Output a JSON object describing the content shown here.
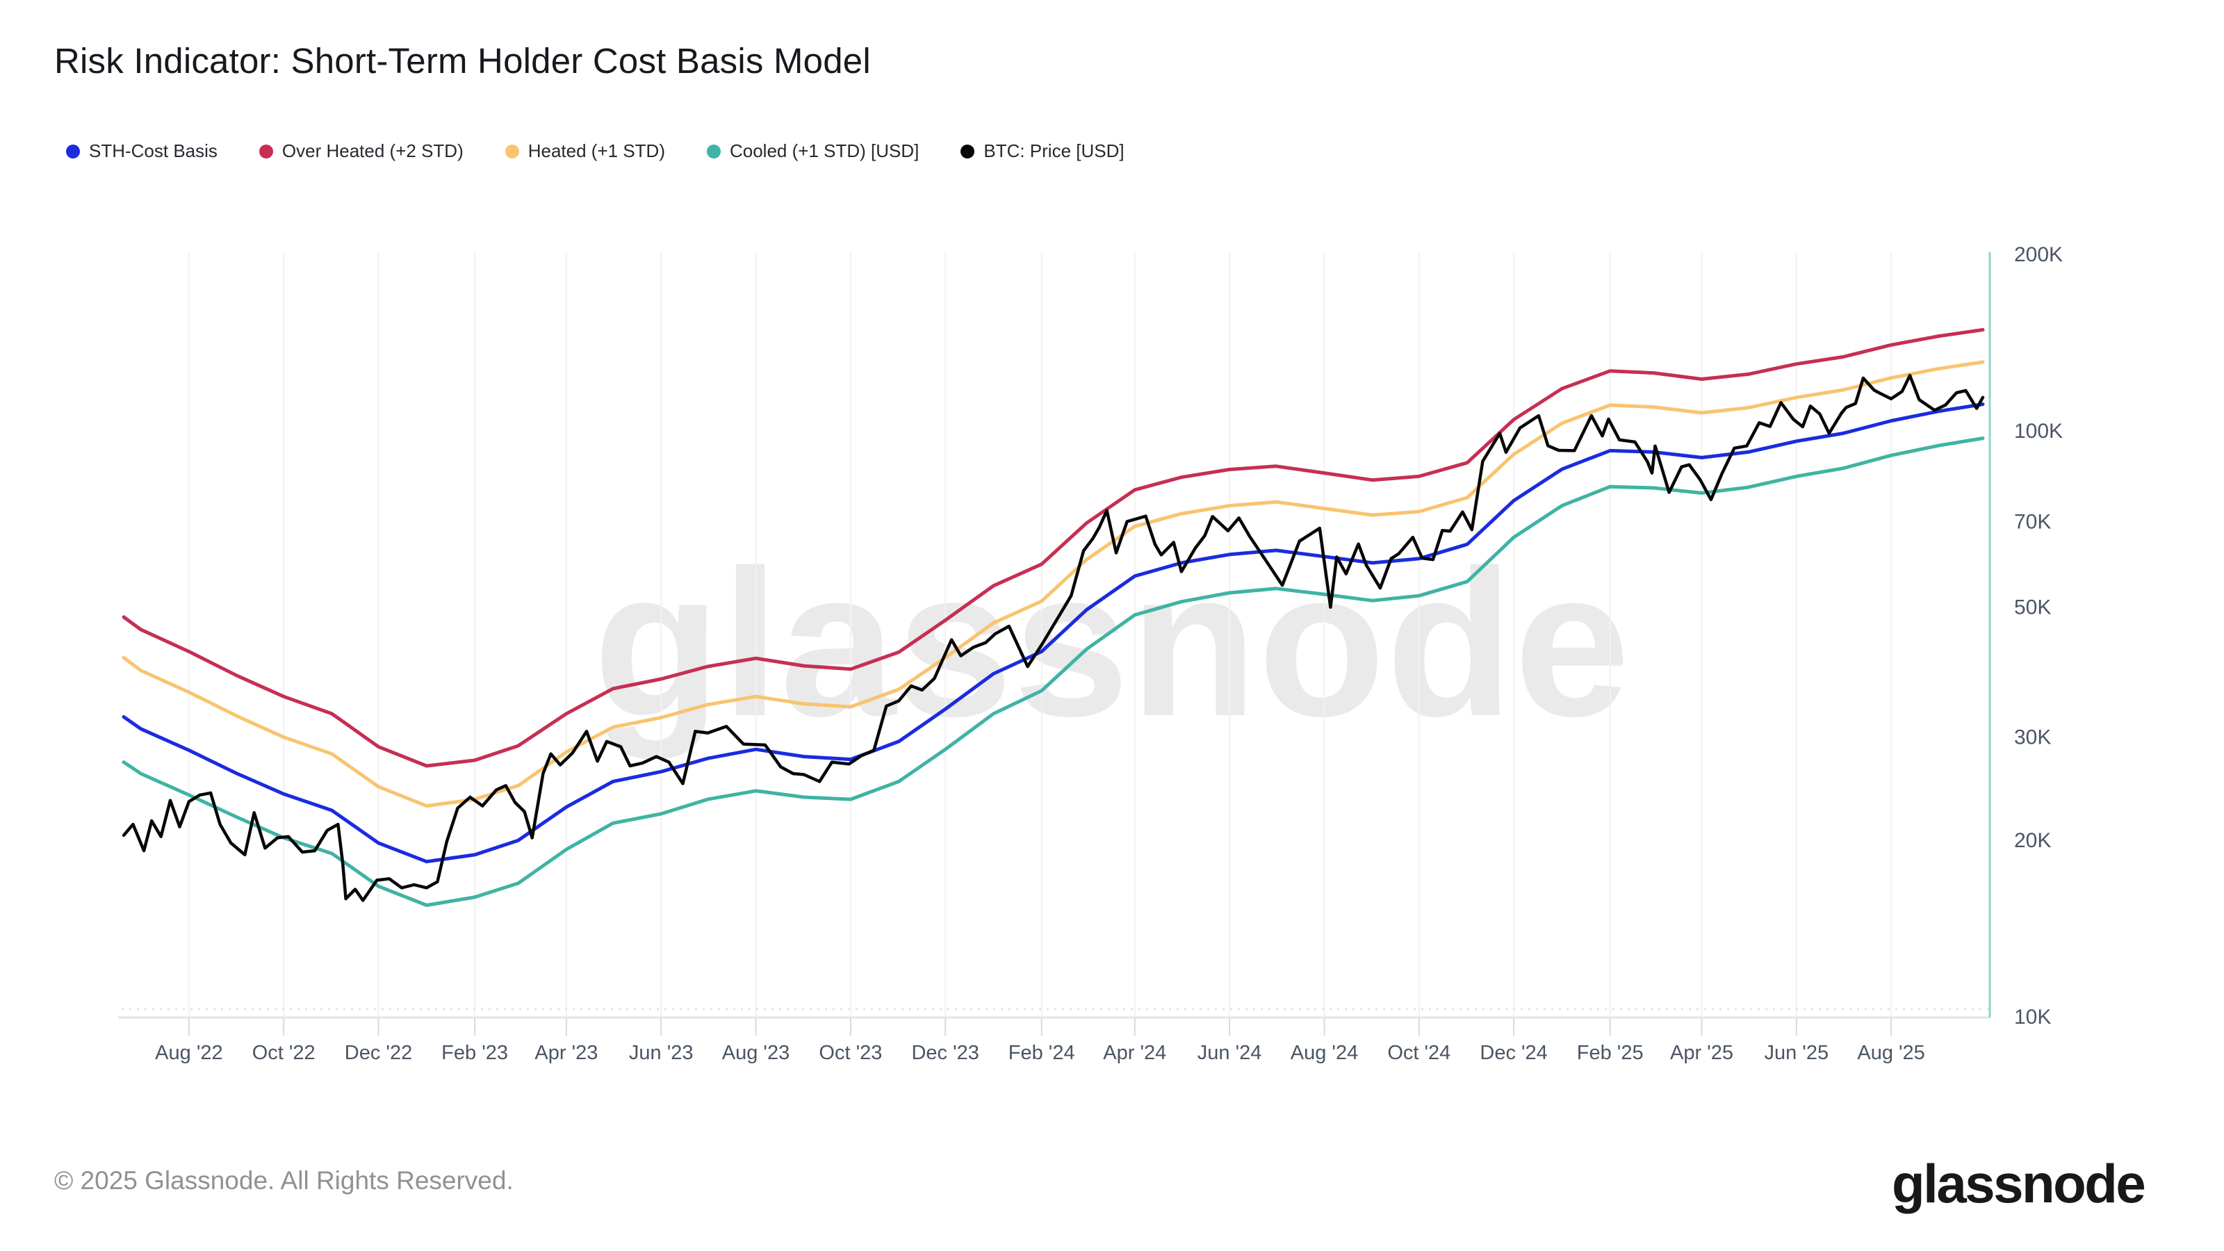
{
  "title": "Risk Indicator: Short-Term Holder Cost Basis Model",
  "watermark": "glassnode",
  "footer": {
    "copyright": "© 2025 Glassnode. All Rights Reserved.",
    "logo": "glassnode"
  },
  "legend": [
    {
      "label": "STH-Cost Basis",
      "color": "#1a2be0"
    },
    {
      "label": "Over Heated (+2 STD)",
      "color": "#c62f52"
    },
    {
      "label": "Heated (+1 STD)",
      "color": "#f8c46f"
    },
    {
      "label": "Cooled (+1 STD) [USD]",
      "color": "#3fb3a4"
    },
    {
      "label": "BTC: Price [USD]",
      "color": "#070707"
    }
  ],
  "chart_data": {
    "type": "line",
    "title": "Risk Indicator: Short-Term Holder Cost Basis Model",
    "y_scale": "log",
    "y_unit": "USD (thousands)",
    "ylim_k": [
      10,
      200
    ],
    "x_domain": [
      "2022-06-20",
      "2025-09-29"
    ],
    "grid": {
      "vertical": true,
      "horizontal_dotted_at_k": 10
    },
    "legend_position": "top-left",
    "y_axis_side": "right",
    "y_ticks": [
      {
        "value_k": 200,
        "label": "200K"
      },
      {
        "value_k": 100,
        "label": "100K"
      },
      {
        "value_k": 70,
        "label": "70K"
      },
      {
        "value_k": 50,
        "label": "50K"
      },
      {
        "value_k": 30,
        "label": "30K"
      },
      {
        "value_k": 20,
        "label": "20K"
      },
      {
        "value_k": 10,
        "label": "10K"
      }
    ],
    "x_ticks": [
      {
        "date": "2022-08-01",
        "label": "Aug '22"
      },
      {
        "date": "2022-10-01",
        "label": "Oct '22"
      },
      {
        "date": "2022-12-01",
        "label": "Dec '22"
      },
      {
        "date": "2023-02-01",
        "label": "Feb '23"
      },
      {
        "date": "2023-04-01",
        "label": "Apr '23"
      },
      {
        "date": "2023-06-01",
        "label": "Jun '23"
      },
      {
        "date": "2023-08-01",
        "label": "Aug '23"
      },
      {
        "date": "2023-10-01",
        "label": "Oct '23"
      },
      {
        "date": "2023-12-01",
        "label": "Dec '23"
      },
      {
        "date": "2024-02-01",
        "label": "Feb '24"
      },
      {
        "date": "2024-04-01",
        "label": "Apr '24"
      },
      {
        "date": "2024-06-01",
        "label": "Jun '24"
      },
      {
        "date": "2024-08-01",
        "label": "Aug '24"
      },
      {
        "date": "2024-10-01",
        "label": "Oct '24"
      },
      {
        "date": "2024-12-01",
        "label": "Dec '24"
      },
      {
        "date": "2025-02-01",
        "label": "Feb '25"
      },
      {
        "date": "2025-04-01",
        "label": "Apr '25"
      },
      {
        "date": "2025-06-01",
        "label": "Jun '25"
      },
      {
        "date": "2025-08-01",
        "label": "Aug '25"
      }
    ],
    "band_dates": [
      "2022-06-20",
      "2022-07-01",
      "2022-08-01",
      "2022-09-01",
      "2022-10-01",
      "2022-11-01",
      "2022-12-01",
      "2023-01-01",
      "2023-02-01",
      "2023-03-01",
      "2023-04-01",
      "2023-05-01",
      "2023-06-01",
      "2023-07-01",
      "2023-08-01",
      "2023-09-01",
      "2023-10-01",
      "2023-11-01",
      "2023-12-01",
      "2024-01-01",
      "2024-02-01",
      "2024-03-01",
      "2024-04-01",
      "2024-05-01",
      "2024-06-01",
      "2024-07-01",
      "2024-08-01",
      "2024-09-01",
      "2024-10-01",
      "2024-11-01",
      "2024-12-01",
      "2025-01-01",
      "2025-02-01",
      "2025-03-01",
      "2025-04-01",
      "2025-05-01",
      "2025-06-01",
      "2025-07-01",
      "2025-08-01",
      "2025-09-01",
      "2025-09-29"
    ],
    "series": [
      {
        "name": "Over Heated (+2 STD)",
        "color": "#c62f52",
        "uses": "band_dates",
        "width": 5,
        "values_k": [
          48.1,
          45.8,
          42.0,
          38.2,
          35.2,
          32.9,
          28.9,
          26.8,
          27.4,
          29.0,
          32.9,
          36.3,
          37.7,
          39.6,
          40.9,
          39.7,
          39.2,
          41.9,
          47.5,
          54.4,
          59.2,
          69.6,
          79.3,
          83.3,
          85.9,
          87.0,
          84.7,
          82.4,
          83.6,
          88.2,
          104.5,
          118.0,
          126.5,
          125.5,
          122.5,
          124.9,
          130.0,
          133.7,
          140.1,
          145.1,
          148.7
        ]
      },
      {
        "name": "Heated (+1 STD)",
        "color": "#f8c46f",
        "uses": "band_dates",
        "width": 5,
        "values_k": [
          41.0,
          39.0,
          35.8,
          32.6,
          30.0,
          28.1,
          24.7,
          22.9,
          23.5,
          24.8,
          28.3,
          31.2,
          32.4,
          34.1,
          35.2,
          34.2,
          33.8,
          36.2,
          41.0,
          47.0,
          51.2,
          60.3,
          68.7,
          72.2,
          74.5,
          75.6,
          73.7,
          71.8,
          72.8,
          76.9,
          91.2,
          103.0,
          110.6,
          109.8,
          107.3,
          109.5,
          114.0,
          117.4,
          123.1,
          127.7,
          131.0
        ]
      },
      {
        "name": "Cooled (+1 STD) [USD]",
        "color": "#3fb3a4",
        "uses": "band_dates",
        "width": 5,
        "values_k": [
          27.2,
          26.0,
          23.9,
          21.9,
          20.2,
          19.0,
          16.7,
          15.5,
          16.0,
          16.9,
          19.3,
          21.4,
          22.2,
          23.5,
          24.3,
          23.7,
          23.5,
          25.2,
          28.6,
          32.9,
          36.0,
          42.4,
          48.5,
          51.1,
          52.9,
          53.8,
          52.6,
          51.3,
          52.3,
          55.3,
          65.8,
          74.5,
          80.3,
          79.9,
          78.3,
          80.1,
          83.6,
          86.3,
          90.8,
          94.4,
          97.1
        ]
      },
      {
        "name": "STH-Cost Basis",
        "color": "#1a2be0",
        "uses": "band_dates",
        "width": 5,
        "values_k": [
          32.5,
          31.0,
          28.5,
          26.0,
          24.0,
          22.5,
          19.8,
          18.4,
          18.9,
          20.0,
          22.8,
          25.2,
          26.2,
          27.6,
          28.6,
          27.8,
          27.5,
          29.5,
          33.5,
          38.5,
          42.0,
          49.5,
          56.5,
          59.5,
          61.5,
          62.5,
          61.0,
          59.5,
          60.5,
          64.0,
          76.0,
          86.0,
          92.5,
          92.0,
          90.0,
          92.0,
          96.0,
          99.0,
          104.0,
          108.0,
          111.0
        ]
      },
      {
        "name": "BTC: Price [USD]",
        "color": "#070707",
        "width": 4.5,
        "points": [
          [
            "2022-06-20",
            20.4
          ],
          [
            "2022-06-26",
            21.3
          ],
          [
            "2022-07-03",
            19.2
          ],
          [
            "2022-07-08",
            21.6
          ],
          [
            "2022-07-14",
            20.3
          ],
          [
            "2022-07-20",
            23.4
          ],
          [
            "2022-07-26",
            21.1
          ],
          [
            "2022-08-01",
            23.3
          ],
          [
            "2022-08-08",
            23.9
          ],
          [
            "2022-08-15",
            24.1
          ],
          [
            "2022-08-21",
            21.3
          ],
          [
            "2022-08-28",
            19.8
          ],
          [
            "2022-09-06",
            18.9
          ],
          [
            "2022-09-12",
            22.3
          ],
          [
            "2022-09-19",
            19.4
          ],
          [
            "2022-09-27",
            20.2
          ],
          [
            "2022-10-04",
            20.3
          ],
          [
            "2022-10-13",
            19.1
          ],
          [
            "2022-10-21",
            19.2
          ],
          [
            "2022-10-29",
            20.8
          ],
          [
            "2022-11-05",
            21.3
          ],
          [
            "2022-11-08",
            18.3
          ],
          [
            "2022-11-10",
            15.9
          ],
          [
            "2022-11-16",
            16.5
          ],
          [
            "2022-11-21",
            15.8
          ],
          [
            "2022-11-30",
            17.1
          ],
          [
            "2022-12-08",
            17.2
          ],
          [
            "2022-12-16",
            16.6
          ],
          [
            "2022-12-24",
            16.8
          ],
          [
            "2023-01-01",
            16.6
          ],
          [
            "2023-01-08",
            17.0
          ],
          [
            "2023-01-14",
            19.9
          ],
          [
            "2023-01-21",
            22.7
          ],
          [
            "2023-01-29",
            23.7
          ],
          [
            "2023-02-06",
            22.9
          ],
          [
            "2023-02-15",
            24.4
          ],
          [
            "2023-02-21",
            24.8
          ],
          [
            "2023-02-27",
            23.2
          ],
          [
            "2023-03-05",
            22.4
          ],
          [
            "2023-03-10",
            20.2
          ],
          [
            "2023-03-17",
            26.0
          ],
          [
            "2023-03-22",
            28.1
          ],
          [
            "2023-03-28",
            26.9
          ],
          [
            "2023-04-05",
            28.2
          ],
          [
            "2023-04-14",
            30.7
          ],
          [
            "2023-04-21",
            27.3
          ],
          [
            "2023-04-27",
            29.5
          ],
          [
            "2023-05-06",
            28.9
          ],
          [
            "2023-05-12",
            26.8
          ],
          [
            "2023-05-20",
            27.1
          ],
          [
            "2023-05-29",
            27.8
          ],
          [
            "2023-06-06",
            27.2
          ],
          [
            "2023-06-15",
            25.0
          ],
          [
            "2023-06-23",
            30.7
          ],
          [
            "2023-07-01",
            30.5
          ],
          [
            "2023-07-13",
            31.3
          ],
          [
            "2023-07-24",
            29.2
          ],
          [
            "2023-08-07",
            29.1
          ],
          [
            "2023-08-17",
            26.7
          ],
          [
            "2023-08-25",
            26.0
          ],
          [
            "2023-09-01",
            25.9
          ],
          [
            "2023-09-11",
            25.2
          ],
          [
            "2023-09-19",
            27.2
          ],
          [
            "2023-09-30",
            27.0
          ],
          [
            "2023-10-08",
            27.9
          ],
          [
            "2023-10-16",
            28.5
          ],
          [
            "2023-10-24",
            33.9
          ],
          [
            "2023-11-01",
            34.6
          ],
          [
            "2023-11-09",
            36.7
          ],
          [
            "2023-11-16",
            36.1
          ],
          [
            "2023-11-24",
            37.8
          ],
          [
            "2023-12-05",
            44.0
          ],
          [
            "2023-12-11",
            41.3
          ],
          [
            "2023-12-19",
            42.7
          ],
          [
            "2023-12-27",
            43.5
          ],
          [
            "2024-01-02",
            45.0
          ],
          [
            "2024-01-11",
            46.4
          ],
          [
            "2024-01-23",
            39.6
          ],
          [
            "2024-02-01",
            43.1
          ],
          [
            "2024-02-12",
            48.2
          ],
          [
            "2024-02-20",
            52.3
          ],
          [
            "2024-02-28",
            62.4
          ],
          [
            "2024-03-05",
            65.5
          ],
          [
            "2024-03-09",
            68.3
          ],
          [
            "2024-03-14",
            73.1
          ],
          [
            "2024-03-20",
            61.9
          ],
          [
            "2024-03-27",
            70.0
          ],
          [
            "2024-04-08",
            71.5
          ],
          [
            "2024-04-14",
            64.0
          ],
          [
            "2024-04-18",
            61.4
          ],
          [
            "2024-04-26",
            64.5
          ],
          [
            "2024-05-01",
            57.5
          ],
          [
            "2024-05-10",
            63.1
          ],
          [
            "2024-05-16",
            66.2
          ],
          [
            "2024-05-21",
            71.4
          ],
          [
            "2024-05-31",
            67.5
          ],
          [
            "2024-06-07",
            71.0
          ],
          [
            "2024-06-14",
            66.0
          ],
          [
            "2024-06-24",
            60.3
          ],
          [
            "2024-07-05",
            54.5
          ],
          [
            "2024-07-16",
            64.8
          ],
          [
            "2024-07-29",
            68.2
          ],
          [
            "2024-08-05",
            50.0
          ],
          [
            "2024-08-09",
            60.9
          ],
          [
            "2024-08-15",
            57.0
          ],
          [
            "2024-08-23",
            64.1
          ],
          [
            "2024-08-28",
            59.0
          ],
          [
            "2024-09-06",
            53.9
          ],
          [
            "2024-09-13",
            60.5
          ],
          [
            "2024-09-18",
            61.7
          ],
          [
            "2024-09-27",
            65.8
          ],
          [
            "2024-10-03",
            60.6
          ],
          [
            "2024-10-10",
            60.3
          ],
          [
            "2024-10-16",
            67.6
          ],
          [
            "2024-10-21",
            67.4
          ],
          [
            "2024-10-29",
            72.7
          ],
          [
            "2024-11-04",
            67.8
          ],
          [
            "2024-11-11",
            88.7
          ],
          [
            "2024-11-22",
            99.0
          ],
          [
            "2024-11-26",
            91.9
          ],
          [
            "2024-12-05",
            101.1
          ],
          [
            "2024-12-17",
            106.1
          ],
          [
            "2024-12-23",
            94.3
          ],
          [
            "2024-12-30",
            92.6
          ],
          [
            "2025-01-09",
            92.5
          ],
          [
            "2025-01-20",
            106.1
          ],
          [
            "2025-01-27",
            98.0
          ],
          [
            "2025-01-31",
            104.7
          ],
          [
            "2025-02-07",
            96.5
          ],
          [
            "2025-02-17",
            95.7
          ],
          [
            "2025-02-25",
            88.6
          ],
          [
            "2025-02-28",
            84.7
          ],
          [
            "2025-03-02",
            94.2
          ],
          [
            "2025-03-11",
            78.5
          ],
          [
            "2025-03-19",
            86.8
          ],
          [
            "2025-03-24",
            87.5
          ],
          [
            "2025-03-31",
            82.5
          ],
          [
            "2025-04-07",
            76.3
          ],
          [
            "2025-04-14",
            84.5
          ],
          [
            "2025-04-22",
            93.4
          ],
          [
            "2025-04-30",
            94.2
          ],
          [
            "2025-05-08",
            103.2
          ],
          [
            "2025-05-15",
            101.7
          ],
          [
            "2025-05-22",
            111.7
          ],
          [
            "2025-05-30",
            104.6
          ],
          [
            "2025-06-05",
            101.6
          ],
          [
            "2025-06-10",
            110.2
          ],
          [
            "2025-06-16",
            106.8
          ],
          [
            "2025-06-22",
            99.0
          ],
          [
            "2025-06-30",
            107.2
          ],
          [
            "2025-07-03",
            109.6
          ],
          [
            "2025-07-09",
            111.3
          ],
          [
            "2025-07-14",
            123.0
          ],
          [
            "2025-07-21",
            117.3
          ],
          [
            "2025-07-25",
            115.8
          ],
          [
            "2025-08-01",
            113.4
          ],
          [
            "2025-08-08",
            116.7
          ],
          [
            "2025-08-13",
            124.3
          ],
          [
            "2025-08-19",
            113.0
          ],
          [
            "2025-08-29",
            108.4
          ],
          [
            "2025-09-05",
            110.7
          ],
          [
            "2025-09-12",
            116.1
          ],
          [
            "2025-09-18",
            117.1
          ],
          [
            "2025-09-25",
            109.2
          ],
          [
            "2025-09-29",
            114.0
          ]
        ]
      }
    ],
    "colors": {
      "right_axis_line": "#8ed5ca",
      "bottom_axis_line": "#e3e3e3",
      "vertical_gridline": "#f2f2f2",
      "dotted_gridline": "#dcdcdc",
      "tick_mark": "#d9d9d9",
      "tick_text": "#4b5563",
      "watermark": "#eaeaea"
    }
  }
}
